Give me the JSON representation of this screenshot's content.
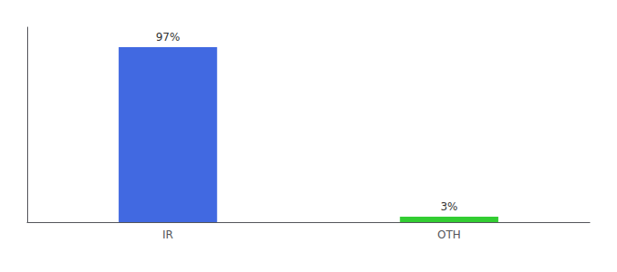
{
  "chart_data": {
    "type": "bar",
    "categories": [
      "IR",
      "OTH"
    ],
    "values": [
      97,
      3
    ],
    "value_labels": [
      "97%",
      "3%"
    ],
    "data_labels": true,
    "colors": [
      "#4169e1",
      "#32cd32"
    ],
    "ylim": [
      0,
      108
    ],
    "tick_labels": "x",
    "grid": false
  }
}
